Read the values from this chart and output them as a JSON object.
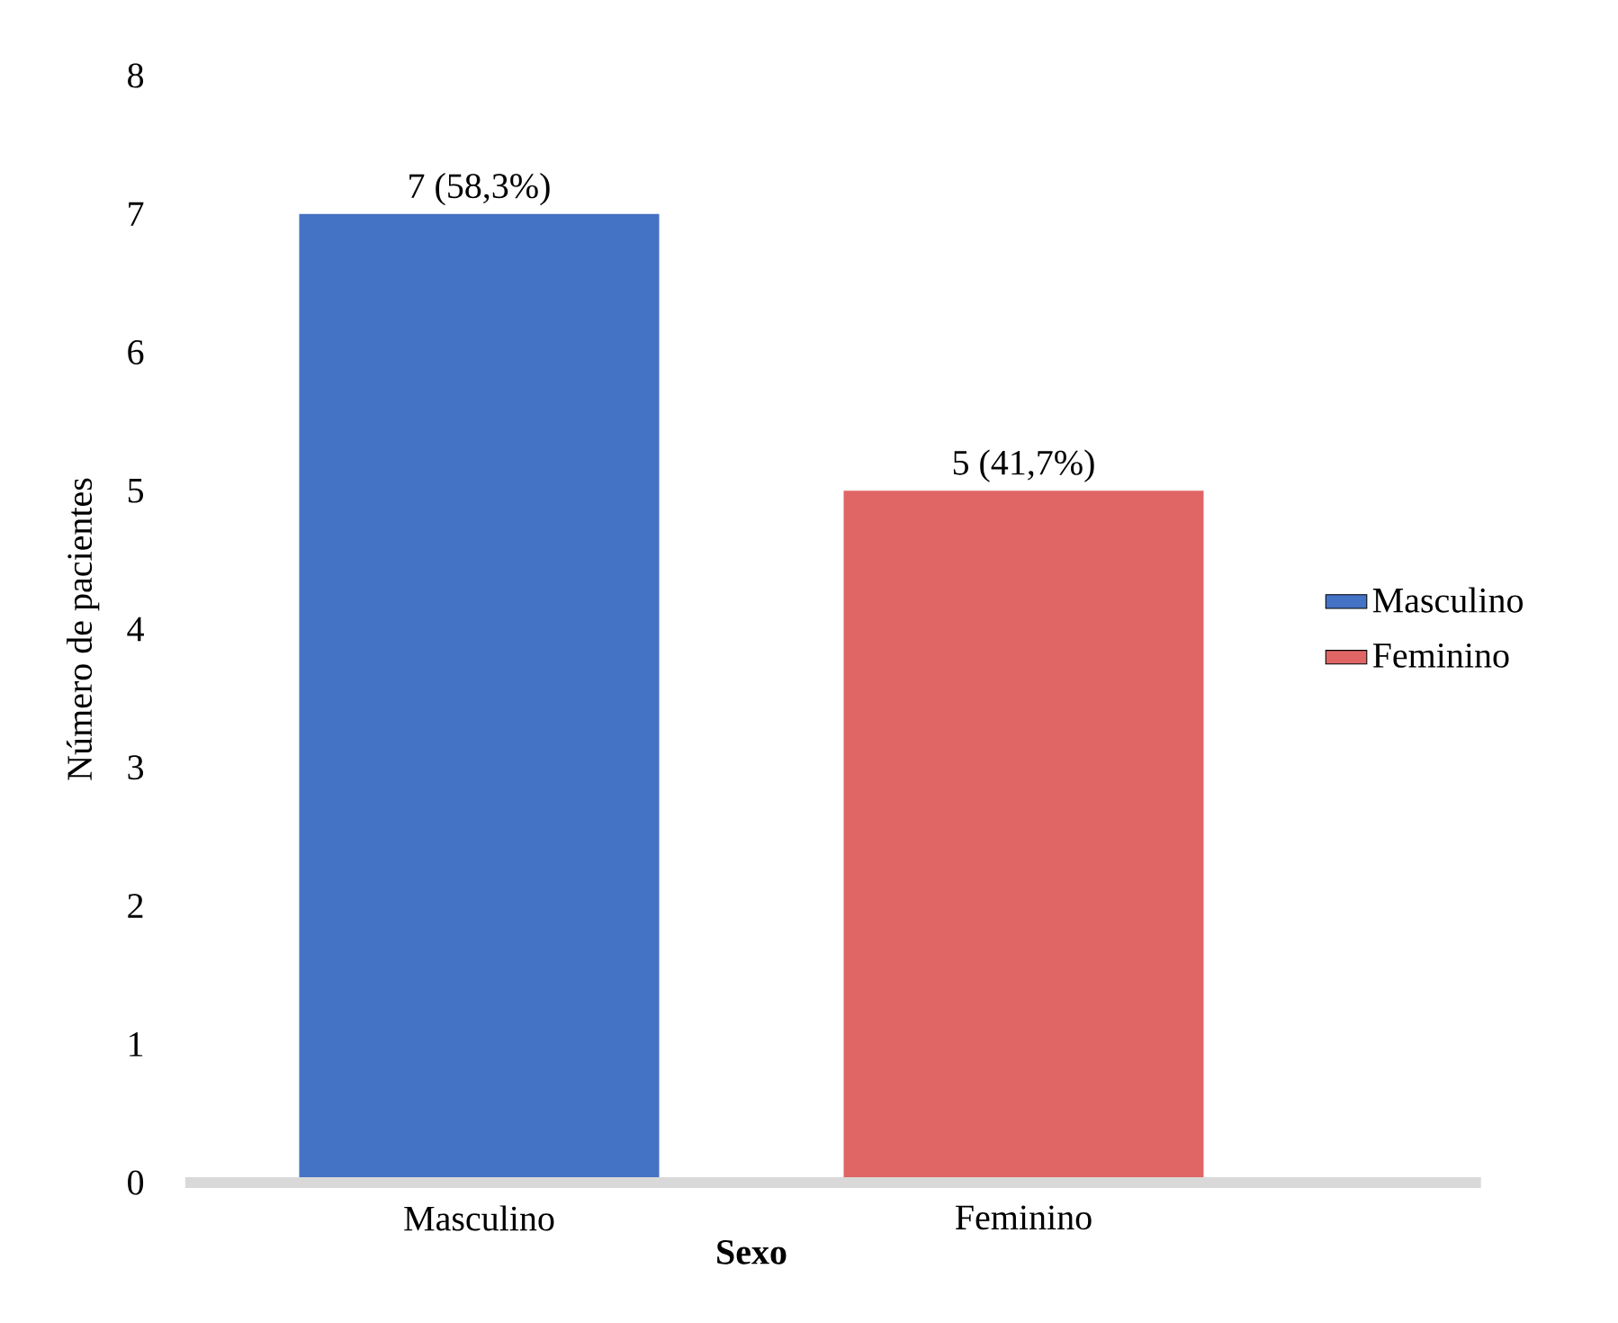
{
  "chart_data": {
    "type": "bar",
    "xlabel": "Sexo",
    "ylabel": "Número de pacientes",
    "categories": [
      "Masculino",
      "Feminino"
    ],
    "series": [
      {
        "name": "Masculino",
        "color": "#4472c4",
        "values": [
          7,
          null
        ],
        "value_labels": [
          "7 (58,3%)",
          null
        ]
      },
      {
        "name": "Feminino",
        "color": "#e06666",
        "values": [
          null,
          5
        ],
        "value_labels": [
          null,
          "5 (41,7%)"
        ]
      }
    ],
    "ylim": [
      0,
      8
    ],
    "yticks": [
      0,
      1,
      2,
      3,
      4,
      5,
      6,
      7,
      8
    ],
    "grid": false,
    "legend": "right"
  }
}
